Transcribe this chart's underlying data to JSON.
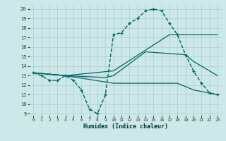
{
  "xlabel": "Humidex (Indice chaleur)",
  "bg_color": "#cce8e8",
  "grid_color": "#aacccc",
  "line_color": "#006666",
  "xlim": [
    -0.5,
    23.5
  ],
  "ylim": [
    8.8,
    20.5
  ],
  "yticks": [
    9,
    10,
    11,
    12,
    13,
    14,
    15,
    16,
    17,
    18,
    19,
    20
  ],
  "xticks": [
    0,
    1,
    2,
    3,
    4,
    5,
    6,
    7,
    8,
    9,
    10,
    11,
    12,
    13,
    14,
    15,
    16,
    17,
    18,
    19,
    20,
    21,
    22,
    23
  ],
  "series": [
    {
      "x": [
        0,
        1,
        2,
        3,
        4,
        5,
        6,
        7,
        8,
        9,
        10,
        11,
        12,
        13,
        14,
        15,
        16,
        17,
        18,
        19,
        20,
        21,
        22,
        23
      ],
      "y": [
        13.3,
        13.0,
        12.5,
        12.5,
        13.0,
        12.5,
        11.5,
        9.5,
        9.0,
        11.0,
        17.3,
        17.5,
        18.5,
        19.0,
        19.8,
        20.0,
        19.8,
        18.5,
        17.3,
        15.2,
        13.5,
        12.2,
        11.2,
        11.0
      ],
      "marker": "+",
      "markersize": 3.5,
      "linewidth": 1.0,
      "linestyle": "--"
    },
    {
      "x": [
        0,
        4,
        10,
        17,
        21,
        23
      ],
      "y": [
        13.3,
        13.0,
        13.5,
        17.3,
        17.3,
        17.3
      ],
      "marker": null,
      "markersize": 0,
      "linewidth": 0.9,
      "linestyle": "-"
    },
    {
      "x": [
        0,
        4,
        10,
        18,
        20,
        23
      ],
      "y": [
        13.3,
        13.0,
        12.2,
        12.2,
        11.5,
        11.0
      ],
      "marker": null,
      "markersize": 0,
      "linewidth": 0.9,
      "linestyle": "-"
    },
    {
      "x": [
        0,
        4,
        9,
        10,
        14,
        19,
        20,
        23
      ],
      "y": [
        13.3,
        13.0,
        12.8,
        13.0,
        15.5,
        15.2,
        14.5,
        13.0
      ],
      "marker": null,
      "markersize": 0,
      "linewidth": 0.9,
      "linestyle": "-"
    }
  ]
}
